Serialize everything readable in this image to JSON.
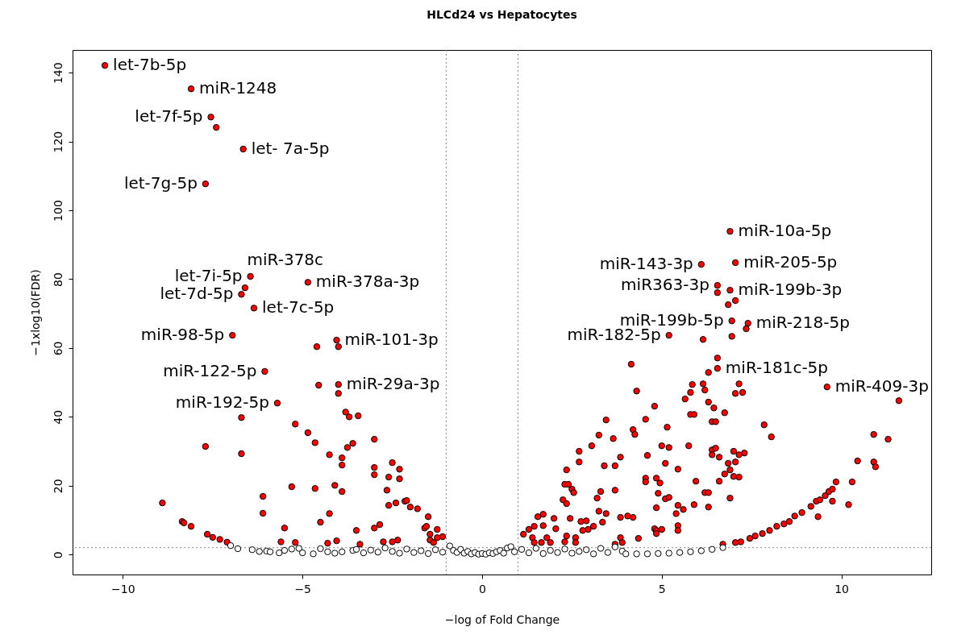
{
  "chart_data": {
    "type": "scatter",
    "title": "HLCd24 vs Hepatocytes",
    "xlabel": "−log of Fold Change",
    "ylabel": "−1xlog10(FDR)",
    "xlim": [
      -11.4,
      12.5
    ],
    "ylim": [
      -5.8,
      146.6
    ],
    "xticks": [
      -10,
      -5,
      0,
      5,
      10
    ],
    "yticks": [
      0,
      20,
      40,
      60,
      80,
      100,
      120,
      140
    ],
    "grid": false,
    "marker": "circle",
    "ref_lines": [
      {
        "axis": "x",
        "value": -1,
        "line_style": "dotted"
      },
      {
        "axis": "x",
        "value": 1,
        "line_style": "dotted"
      },
      {
        "axis": "y",
        "value": 2,
        "line_style": "dotted"
      }
    ],
    "series": [
      {
        "color": "#ff0000",
        "x": [
          -10.5,
          -8.1,
          -7.55,
          -7.4,
          -6.65,
          -7.7,
          -6.45,
          -6.6,
          -6.7,
          -6.35,
          -4.85,
          -6.95,
          -4.05,
          -4.0,
          -4.6,
          -6.05,
          -4.0,
          -4.0,
          -4.55,
          -5.7,
          -8.9,
          -8.35,
          -8.3,
          -8.1,
          -7.65,
          -7.5,
          -7.3,
          -7.1,
          -7.7,
          -6.7,
          -6.7,
          -6.1,
          -6.1,
          -5.5,
          -5.6,
          -5.2,
          -4.85,
          -4.65,
          -5.3,
          -4.65,
          -4.5,
          -5.2,
          -4.25,
          -3.9,
          -3.9,
          -3.75,
          -3.6,
          -3.8,
          -3.7,
          -3.45,
          -4.1,
          -3.9,
          -4.25,
          -4.3,
          -4.05,
          -3.5,
          -3.4,
          -3.0,
          -3.0,
          -3.0,
          -2.5,
          -2.3,
          -2.3,
          -2.6,
          -2.65,
          -2.6,
          -2.4,
          -2.15,
          -3.0,
          -2.85,
          -2.75,
          -2.5,
          -2.35,
          -2.1,
          -2.0,
          -1.8,
          -1.5,
          -1.6,
          -1.55,
          -1.25,
          -1.45,
          -1.45,
          -1.35,
          -1.25,
          -1.1,
          1.15,
          1.3,
          1.45,
          1.55,
          1.7,
          1.7,
          1.4,
          1.45,
          1.65,
          1.8,
          1.9,
          2.0,
          2.05,
          2.3,
          2.35,
          2.6,
          2.6,
          2.25,
          2.35,
          2.3,
          2.4,
          2.5,
          2.55,
          2.35,
          2.45,
          2.7,
          2.7,
          2.75,
          2.8,
          2.9,
          2.95,
          3.1,
          3.05,
          3.25,
          3.45,
          3.65,
          3.4,
          3.2,
          3.3,
          3.25,
          3.45,
          3.35,
          3.7,
          3.85,
          3.7,
          3.85,
          4.05,
          4.2,
          3.85,
          3.9,
          3.7,
          4.35,
          4.15,
          4.3,
          4.8,
          4.55,
          4.2,
          4.25,
          5.15,
          5.0,
          5.2,
          4.6,
          5.1,
          5.45,
          4.55,
          4.55,
          4.85,
          4.95,
          4.9,
          5.1,
          5.2,
          4.85,
          5.45,
          5.6,
          5.4,
          5.45,
          5.45,
          4.8,
          4.85,
          5.0,
          4.85,
          5.75,
          5.9,
          5.95,
          6.2,
          6.3,
          6.3,
          5.65,
          5.8,
          5.85,
          5.8,
          5.9,
          6.15,
          6.2,
          6.3,
          6.55,
          6.3,
          6.45,
          6.4,
          6.5,
          6.75,
          6.4,
          6.4,
          6.5,
          6.6,
          6.6,
          6.85,
          6.9,
          6.75,
          6.9,
          7.0,
          7.05,
          7.15,
          7.3,
          7.0,
          7.15,
          7.15,
          7.05,
          7.25,
          7.85,
          8.05,
          10.9,
          11.3,
          10.45,
          10.9,
          10.95,
          10.3,
          10.2,
          9.75,
          9.35,
          6.7,
          7.05,
          7.2,
          7.45,
          7.6,
          7.8,
          8.0,
          8.2,
          8.4,
          8.55,
          8.7,
          8.9,
          9.15,
          9.3,
          9.4,
          9.55,
          9.65,
          9.75,
          9.85,
          6.9,
          6.1,
          7.05,
          6.55,
          6.55,
          6.9,
          7.05,
          6.85,
          6.95,
          7.4,
          7.35,
          5.2,
          6.15,
          6.95,
          6.55,
          9.6,
          11.6
        ],
        "values": [
          142.1,
          135.3,
          127.1,
          124.1,
          117.8,
          107.7,
          80.8,
          77.5,
          75.6,
          71.6,
          79.1,
          63.7,
          62.3,
          60.4,
          60.4,
          53.2,
          49.4,
          46.8,
          49.2,
          44.0,
          15.0,
          9.6,
          9.2,
          8.2,
          5.9,
          5.0,
          4.4,
          3.6,
          31.4,
          39.8,
          29.3,
          16.9,
          12.0,
          7.7,
          3.7,
          37.9,
          35.4,
          32.5,
          19.7,
          19.2,
          9.4,
          3.5,
          29.0,
          28.1,
          26.0,
          31.1,
          32.3,
          41.4,
          40.0,
          40.3,
          20.1,
          18.3,
          11.9,
          3.3,
          4.0,
          7.0,
          3.0,
          33.5,
          25.3,
          23.2,
          26.7,
          24.8,
          22.0,
          22.5,
          18.7,
          14.3,
          15.0,
          15.5,
          7.7,
          8.7,
          3.7,
          3.7,
          4.2,
          15.7,
          13.8,
          13.3,
          11.0,
          7.7,
          8.2,
          7.3,
          5.9,
          4.2,
          3.5,
          4.9,
          5.2,
          5.9,
          7.3,
          8.2,
          11.0,
          11.7,
          8.4,
          4.9,
          3.5,
          3.5,
          4.9,
          3.5,
          10.5,
          7.5,
          3.7,
          5.4,
          4.9,
          3.5,
          15.9,
          14.8,
          20.4,
          20.4,
          19.0,
          18.0,
          24.6,
          10.5,
          30.0,
          26.9,
          9.6,
          7.0,
          9.8,
          7.3,
          8.2,
          31.6,
          34.7,
          39.1,
          33.7,
          25.8,
          16.4,
          18.3,
          12.6,
          11.9,
          9.4,
          25.8,
          28.3,
          18.7,
          10.8,
          11.2,
          10.8,
          4.9,
          3.5,
          3.0,
          4.7,
          55.3,
          47.5,
          43.1,
          39.3,
          36.3,
          34.9,
          37.0,
          31.6,
          31.1,
          28.8,
          26.5,
          24.8,
          22.2,
          21.1,
          22.2,
          20.8,
          17.8,
          16.2,
          16.6,
          13.6,
          14.3,
          13.1,
          11.9,
          8.4,
          7.0,
          7.5,
          7.0,
          7.3,
          6.1,
          31.6,
          14.5,
          21.3,
          18.0,
          18.0,
          13.8,
          45.2,
          47.1,
          49.4,
          40.7,
          40.7,
          49.6,
          47.8,
          52.9,
          57.1,
          44.3,
          42.6,
          38.6,
          38.6,
          41.2,
          30.4,
          29.0,
          30.9,
          28.3,
          21.3,
          26.5,
          16.4,
          23.4,
          24.6,
          30.0,
          26.9,
          29.0,
          29.5,
          22.7,
          22.5,
          49.6,
          46.8,
          47.1,
          37.7,
          34.2,
          34.9,
          33.5,
          27.2,
          26.9,
          25.5,
          21.1,
          14.5,
          15.5,
          11.0,
          3.0,
          3.5,
          3.7,
          4.7,
          5.4,
          6.1,
          7.0,
          8.2,
          8.9,
          9.6,
          11.2,
          12.2,
          14.0,
          15.5,
          15.9,
          17.1,
          18.3,
          19.0,
          21.1,
          93.9,
          84.3,
          84.8,
          78.2,
          76.1,
          76.8,
          73.8,
          72.6,
          67.9,
          67.2,
          65.6,
          63.7,
          62.5,
          63.4,
          54.1,
          48.7,
          44.7
        ]
      },
      {
        "color": "#ffffff",
        "x": [
          -7.0,
          -6.8,
          -6.4,
          -6.2,
          -6.0,
          -5.9,
          -5.65,
          -5.5,
          -5.3,
          -5.1,
          -5.0,
          -4.7,
          -4.5,
          -4.3,
          -4.1,
          -3.9,
          -3.6,
          -3.5,
          -3.3,
          -3.1,
          -2.9,
          -2.7,
          -2.5,
          -2.3,
          -2.1,
          -1.9,
          -1.7,
          -1.5,
          -1.3,
          -1.1,
          -0.9,
          -0.8,
          -0.7,
          -0.6,
          -0.5,
          -0.4,
          -0.3,
          -0.2,
          -0.1,
          0,
          0.1,
          0.2,
          0.3,
          0.4,
          0.5,
          0.6,
          0.7,
          0.8,
          0.9,
          1.1,
          1.3,
          1.5,
          1.7,
          1.9,
          2.1,
          2.3,
          2.5,
          2.7,
          2.9,
          3.1,
          3.3,
          3.5,
          3.7,
          3.9,
          4.0,
          4.3,
          4.6,
          4.9,
          5.2,
          5.5,
          5.8,
          6.1,
          6.4,
          6.7
        ],
        "values": [
          2.6,
          1.7,
          1.4,
          0.9,
          1.0,
          0.8,
          0.5,
          1.2,
          1.6,
          1.8,
          0.5,
          0.2,
          1.7,
          0.8,
          0.4,
          0.8,
          1.2,
          1.5,
          0.5,
          1.3,
          0.7,
          1.9,
          0.9,
          0.4,
          1.6,
          0.6,
          1.1,
          0.3,
          1.4,
          0.7,
          2.5,
          1.2,
          0.6,
          1.5,
          0.4,
          0.9,
          0.2,
          0.6,
          0.1,
          0.3,
          0.1,
          0.5,
          0.3,
          0.8,
          1.2,
          0.4,
          1.9,
          2.3,
          0.8,
          1.5,
          0.5,
          1.8,
          0.3,
          1.2,
          0.6,
          1.6,
          0.4,
          0.9,
          1.4,
          0.2,
          1.8,
          0.6,
          2.2,
          1.0,
          0.2,
          0.2,
          0.2,
          0.3,
          0.4,
          0.6,
          0.8,
          1.1,
          1.5,
          2.0
        ]
      }
    ],
    "annotations": [
      {
        "text": "let-7b-5p",
        "x": -10.5,
        "y": 142.1
      },
      {
        "text": "miR-1248",
        "x": -8.1,
        "y": 135.3
      },
      {
        "text": "let-7f-5p",
        "x": -7.55,
        "y": 127.1
      },
      {
        "text": "let- 7a-5p",
        "x": -6.65,
        "y": 117.8
      },
      {
        "text": "let-7g-5p",
        "x": -7.7,
        "y": 107.7
      },
      {
        "text": "let-7i-5p",
        "x": -6.45,
        "y": 80.8
      },
      {
        "text": "miR-378c",
        "x": -6.45,
        "y": 80.8
      },
      {
        "text": "let-7d-5p",
        "x": -6.7,
        "y": 75.6
      },
      {
        "text": "let-7c-5p",
        "x": -6.35,
        "y": 71.6
      },
      {
        "text": "miR-378a-3p",
        "x": -4.85,
        "y": 79.1
      },
      {
        "text": "miR-98-5p",
        "x": -6.95,
        "y": 63.7
      },
      {
        "text": "miR-101-3p",
        "x": -4.05,
        "y": 62.3
      },
      {
        "text": "miR-122-5p",
        "x": -6.05,
        "y": 53.2
      },
      {
        "text": "miR-29a-3p",
        "x": -4.0,
        "y": 49.4
      },
      {
        "text": "miR-192-5p",
        "x": -5.7,
        "y": 44.0
      },
      {
        "text": "miR-10a-5p",
        "x": 6.9,
        "y": 93.9
      },
      {
        "text": "miR-143-3p",
        "x": 6.1,
        "y": 84.3
      },
      {
        "text": "miR-205-5p",
        "x": 7.05,
        "y": 84.8
      },
      {
        "text": "miR363-3p",
        "x": 6.55,
        "y": 78.2
      },
      {
        "text": "miR-199b-3p",
        "x": 6.9,
        "y": 76.8
      },
      {
        "text": "miR-199b-5p",
        "x": 6.95,
        "y": 67.9
      },
      {
        "text": "miR-218-5p",
        "x": 7.4,
        "y": 67.2
      },
      {
        "text": "miR-182-5p",
        "x": 5.2,
        "y": 63.7
      },
      {
        "text": "miR-181c-5p",
        "x": 6.55,
        "y": 54.1
      },
      {
        "text": "miR-409-3p",
        "x": 9.6,
        "y": 48.7
      }
    ]
  }
}
